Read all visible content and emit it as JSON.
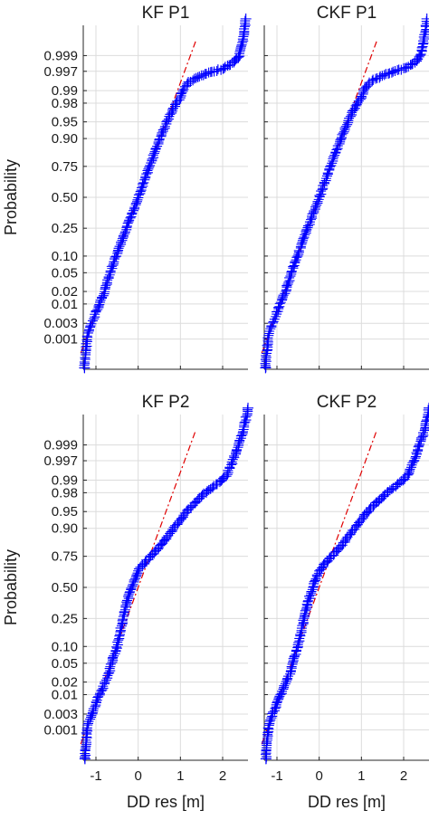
{
  "chart_data": [
    {
      "type": "scatter",
      "title": "KF P1",
      "xlabel": "",
      "ylabel": "Probability",
      "xlim": [
        -1.3,
        2.6
      ],
      "xticks": [
        -1,
        0,
        1,
        2
      ],
      "xtick_labels": [
        "",
        "",
        "",
        ""
      ],
      "yticks": [
        0.001,
        0.003,
        0.01,
        0.02,
        0.05,
        0.1,
        0.25,
        0.5,
        0.75,
        0.9,
        0.95,
        0.98,
        0.99,
        0.997,
        0.999
      ],
      "ytick_labels": [
        "0.001",
        "0.003",
        "0.01",
        "0.02",
        "0.05",
        "0.10",
        "0.25",
        "0.50",
        "0.75",
        "0.90",
        "0.95",
        "0.98",
        "0.99",
        "0.997",
        "0.999"
      ],
      "y_scale": "normal-probability",
      "grid": true,
      "marker": "+",
      "marker_color": "#0000ff",
      "reference_line_color": "#e00000",
      "mean": 0.0,
      "std": 0.4,
      "points": [
        [
          -1.27,
          0.0001
        ],
        [
          -1.24,
          0.0004
        ],
        [
          -1.22,
          0.0008
        ],
        [
          -1.2,
          0.0013
        ],
        [
          -1.15,
          0.002
        ],
        [
          -1.1,
          0.003
        ],
        [
          -1.05,
          0.004
        ],
        [
          -1.0,
          0.006
        ],
        [
          -0.95,
          0.008
        ],
        [
          -0.9,
          0.011
        ],
        [
          -0.8,
          0.02
        ],
        [
          -0.6,
          0.07
        ],
        [
          -0.4,
          0.16
        ],
        [
          -0.2,
          0.31
        ],
        [
          0.0,
          0.5
        ],
        [
          0.2,
          0.69
        ],
        [
          0.4,
          0.84
        ],
        [
          0.6,
          0.93
        ],
        [
          0.8,
          0.97
        ],
        [
          0.9,
          0.98
        ],
        [
          1.0,
          0.985
        ],
        [
          1.05,
          0.99
        ],
        [
          1.2,
          0.994
        ],
        [
          1.5,
          0.996
        ],
        [
          1.8,
          0.997
        ],
        [
          2.0,
          0.9975
        ],
        [
          2.15,
          0.998
        ],
        [
          2.3,
          0.9985
        ],
        [
          2.4,
          0.999
        ],
        [
          2.45,
          0.9995
        ],
        [
          2.5,
          0.9998
        ],
        [
          2.55,
          0.99995
        ]
      ]
    },
    {
      "type": "scatter",
      "title": "CKF P1",
      "xlabel": "",
      "ylabel": "",
      "xlim": [
        -1.3,
        2.6
      ],
      "xticks": [
        -1,
        0,
        1,
        2
      ],
      "xtick_labels": [
        "",
        "",
        "",
        ""
      ],
      "yticks": [
        0.001,
        0.003,
        0.01,
        0.02,
        0.05,
        0.1,
        0.25,
        0.5,
        0.75,
        0.9,
        0.95,
        0.98,
        0.99,
        0.997,
        0.999
      ],
      "ytick_labels": [
        "",
        "",
        "",
        "",
        "",
        "",
        "",
        "",
        "",
        "",
        "",
        "",
        "",
        "",
        ""
      ],
      "y_scale": "normal-probability",
      "grid": true,
      "marker": "+",
      "marker_color": "#0000ff",
      "reference_line_color": "#e00000",
      "mean": 0.0,
      "std": 0.4,
      "points": [
        [
          -1.27,
          0.0001
        ],
        [
          -1.24,
          0.0004
        ],
        [
          -1.22,
          0.0008
        ],
        [
          -1.2,
          0.0013
        ],
        [
          -1.15,
          0.002
        ],
        [
          -1.1,
          0.003
        ],
        [
          -1.05,
          0.004
        ],
        [
          -1.0,
          0.006
        ],
        [
          -0.95,
          0.008
        ],
        [
          -0.9,
          0.011
        ],
        [
          -0.8,
          0.02
        ],
        [
          -0.6,
          0.07
        ],
        [
          -0.4,
          0.16
        ],
        [
          -0.2,
          0.31
        ],
        [
          0.0,
          0.5
        ],
        [
          0.2,
          0.69
        ],
        [
          0.4,
          0.84
        ],
        [
          0.6,
          0.93
        ],
        [
          0.8,
          0.97
        ],
        [
          0.9,
          0.98
        ],
        [
          1.0,
          0.985
        ],
        [
          1.05,
          0.99
        ],
        [
          1.2,
          0.994
        ],
        [
          1.5,
          0.996
        ],
        [
          1.8,
          0.997
        ],
        [
          2.0,
          0.9975
        ],
        [
          2.15,
          0.998
        ],
        [
          2.3,
          0.9985
        ],
        [
          2.4,
          0.999
        ],
        [
          2.45,
          0.9995
        ],
        [
          2.5,
          0.9998
        ],
        [
          2.55,
          0.99995
        ]
      ]
    },
    {
      "type": "scatter",
      "title": "KF P2",
      "xlabel": "DD res [m]",
      "ylabel": "Probability",
      "xlim": [
        -1.3,
        2.6
      ],
      "xticks": [
        -1,
        0,
        1,
        2
      ],
      "xtick_labels": [
        "-1",
        "0",
        "1",
        "2"
      ],
      "yticks": [
        0.001,
        0.003,
        0.01,
        0.02,
        0.05,
        0.1,
        0.25,
        0.5,
        0.75,
        0.9,
        0.95,
        0.98,
        0.99,
        0.997,
        0.999
      ],
      "ytick_labels": [
        "0.001",
        "0.003",
        "0.01",
        "0.02",
        "0.05",
        "0.10",
        "0.25",
        "0.50",
        "0.75",
        "0.90",
        "0.95",
        "0.98",
        "0.99",
        "0.997",
        "0.999"
      ],
      "y_scale": "normal-probability",
      "grid": true,
      "marker": "+",
      "marker_color": "#0000ff",
      "reference_line_color": "#e00000",
      "mean": 0.0,
      "std": 0.4,
      "points": [
        [
          -1.26,
          0.0001
        ],
        [
          -1.24,
          0.0003
        ],
        [
          -1.22,
          0.0007
        ],
        [
          -1.2,
          0.0012
        ],
        [
          -1.1,
          0.003
        ],
        [
          -1.0,
          0.006
        ],
        [
          -0.9,
          0.011
        ],
        [
          -0.8,
          0.018
        ],
        [
          -0.7,
          0.03
        ],
        [
          -0.6,
          0.06
        ],
        [
          -0.5,
          0.1
        ],
        [
          -0.4,
          0.2
        ],
        [
          -0.3,
          0.33
        ],
        [
          -0.2,
          0.45
        ],
        [
          -0.1,
          0.56
        ],
        [
          0.0,
          0.64
        ],
        [
          0.2,
          0.72
        ],
        [
          0.4,
          0.78
        ],
        [
          0.6,
          0.84
        ],
        [
          0.8,
          0.89
        ],
        [
          1.0,
          0.93
        ],
        [
          1.2,
          0.955
        ],
        [
          1.4,
          0.97
        ],
        [
          1.6,
          0.98
        ],
        [
          1.8,
          0.986
        ],
        [
          2.0,
          0.99
        ],
        [
          2.1,
          0.993
        ],
        [
          2.2,
          0.996
        ],
        [
          2.3,
          0.998
        ],
        [
          2.4,
          0.9992
        ],
        [
          2.5,
          0.9997
        ],
        [
          2.6,
          0.99995
        ]
      ]
    },
    {
      "type": "scatter",
      "title": "CKF P2",
      "xlabel": "DD res [m]",
      "ylabel": "",
      "xlim": [
        -1.3,
        2.6
      ],
      "xticks": [
        -1,
        0,
        1,
        2
      ],
      "xtick_labels": [
        "-1",
        "0",
        "1",
        "2"
      ],
      "yticks": [
        0.001,
        0.003,
        0.01,
        0.02,
        0.05,
        0.1,
        0.25,
        0.5,
        0.75,
        0.9,
        0.95,
        0.98,
        0.99,
        0.997,
        0.999
      ],
      "ytick_labels": [
        "",
        "",
        "",
        "",
        "",
        "",
        "",
        "",
        "",
        "",
        "",
        "",
        "",
        "",
        ""
      ],
      "y_scale": "normal-probability",
      "grid": true,
      "marker": "+",
      "marker_color": "#0000ff",
      "reference_line_color": "#e00000",
      "mean": 0.0,
      "std": 0.4,
      "points": [
        [
          -1.26,
          0.0001
        ],
        [
          -1.24,
          0.0003
        ],
        [
          -1.22,
          0.0007
        ],
        [
          -1.2,
          0.0012
        ],
        [
          -1.1,
          0.003
        ],
        [
          -1.0,
          0.006
        ],
        [
          -0.9,
          0.011
        ],
        [
          -0.8,
          0.018
        ],
        [
          -0.7,
          0.03
        ],
        [
          -0.6,
          0.06
        ],
        [
          -0.5,
          0.1
        ],
        [
          -0.4,
          0.2
        ],
        [
          -0.3,
          0.33
        ],
        [
          -0.2,
          0.45
        ],
        [
          -0.1,
          0.56
        ],
        [
          0.0,
          0.64
        ],
        [
          0.2,
          0.72
        ],
        [
          0.4,
          0.78
        ],
        [
          0.6,
          0.84
        ],
        [
          0.8,
          0.89
        ],
        [
          1.0,
          0.93
        ],
        [
          1.2,
          0.955
        ],
        [
          1.4,
          0.97
        ],
        [
          1.6,
          0.98
        ],
        [
          1.8,
          0.986
        ],
        [
          2.0,
          0.99
        ],
        [
          2.1,
          0.993
        ],
        [
          2.2,
          0.996
        ],
        [
          2.3,
          0.998
        ],
        [
          2.4,
          0.9992
        ],
        [
          2.5,
          0.9997
        ],
        [
          2.6,
          0.99995
        ]
      ]
    }
  ]
}
